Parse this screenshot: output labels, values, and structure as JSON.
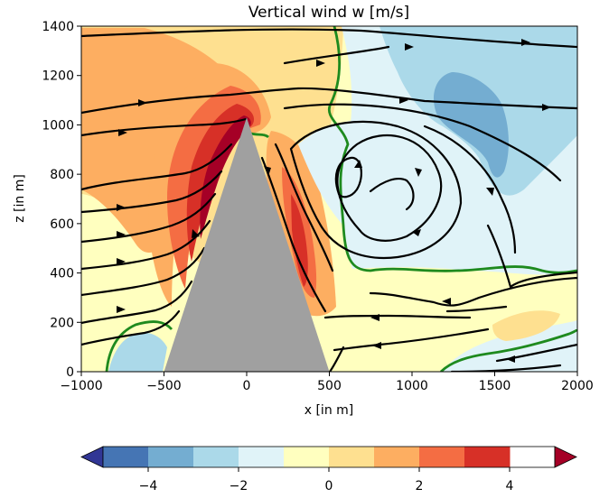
{
  "chart_data": {
    "type": "heatmap",
    "title": "Vertical wind w [m/s]",
    "xlabel": "x [in m]",
    "ylabel": "z [in m]",
    "xlim": [
      -1000,
      2000
    ],
    "ylim": [
      0,
      1400
    ],
    "x_ticks": [
      -1000,
      -500,
      0,
      500,
      1000,
      1500,
      2000
    ],
    "y_ticks": [
      0,
      200,
      400,
      600,
      800,
      1000,
      1200,
      1400
    ],
    "colorbar": {
      "ticks": [
        -4,
        -2,
        0,
        2,
        4
      ],
      "tick_labels": [
        "−4",
        "−2",
        "0",
        "2",
        "4"
      ],
      "range": [
        -5,
        5
      ],
      "extend": "both",
      "levels": [
        -5,
        -4,
        -3,
        -2,
        -1,
        0,
        1,
        2,
        3,
        4,
        5
      ],
      "colors": [
        "#313695",
        "#4575b4",
        "#74add1",
        "#abd9e9",
        "#e0f3f8",
        "#ffffbf",
        "#fee090",
        "#fdae61",
        "#f46d43",
        "#d73027",
        "#a50026"
      ]
    },
    "obstacle": {
      "shape": "triangle",
      "vertices": [
        [
          -500,
          0
        ],
        [
          0,
          1030
        ],
        [
          500,
          0
        ]
      ],
      "color": "#a0a0a0"
    },
    "zero_contour_color": "#1e8a1e",
    "streamline_color": "#000000"
  }
}
